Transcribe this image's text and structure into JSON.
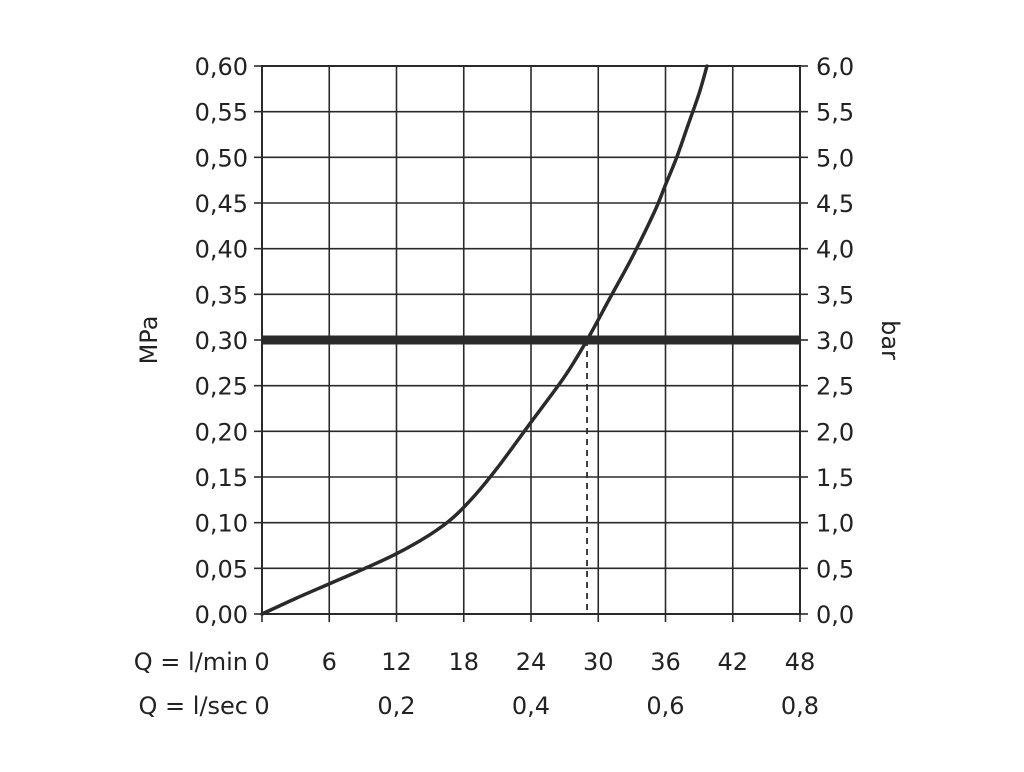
{
  "chart_data": {
    "type": "line",
    "xlabel_primary": "Q = l/min",
    "xlabel_secondary": "Q = l/sec",
    "ylabel_left": "MPa",
    "ylabel_right": "bar",
    "xlim": [
      0,
      48
    ],
    "ylim": [
      0,
      0.6
    ],
    "grid": true,
    "x_ticks": [
      "0",
      "6",
      "12",
      "18",
      "24",
      "30",
      "36",
      "42",
      "48"
    ],
    "x_tick_values": [
      0,
      6,
      12,
      18,
      24,
      30,
      36,
      42,
      48
    ],
    "x2_ticks": [
      "0",
      "0,2",
      "0,4",
      "0,6",
      "0,8"
    ],
    "x2_tick_values": [
      0,
      0.2,
      0.4,
      0.6,
      0.8
    ],
    "y_left_ticks": [
      "0,00",
      "0,05",
      "0,10",
      "0,15",
      "0,20",
      "0,25",
      "0,30",
      "0,35",
      "0,40",
      "0,45",
      "0,50",
      "0,55",
      "0,60"
    ],
    "y_left_tick_values": [
      0,
      0.05,
      0.1,
      0.15,
      0.2,
      0.25,
      0.3,
      0.35,
      0.4,
      0.45,
      0.5,
      0.55,
      0.6
    ],
    "y_right_ticks": [
      "0,0",
      "0,5",
      "1,0",
      "1,5",
      "2,0",
      "2,5",
      "3,0",
      "3,5",
      "4,0",
      "4,5",
      "5,0",
      "5,5",
      "6,0"
    ],
    "y_right_tick_values": [
      0,
      0.5,
      1.0,
      1.5,
      2.0,
      2.5,
      3.0,
      3.5,
      4.0,
      4.5,
      5.0,
      5.5,
      6.0
    ],
    "series": [
      {
        "x": [
          0,
          3,
          6,
          9,
          12,
          15,
          17,
          19,
          21,
          24,
          27,
          29,
          31,
          33,
          35,
          36,
          37,
          38,
          39,
          39.7
        ],
        "y": [
          0,
          0.017,
          0.033,
          0.049,
          0.066,
          0.087,
          0.105,
          0.13,
          0.16,
          0.21,
          0.26,
          0.3,
          0.345,
          0.39,
          0.44,
          0.47,
          0.5,
          0.535,
          0.57,
          0.6
        ]
      }
    ],
    "reference_line": {
      "y": 0.3
    },
    "reference_marker": {
      "x": 29,
      "y": 0.3
    }
  }
}
